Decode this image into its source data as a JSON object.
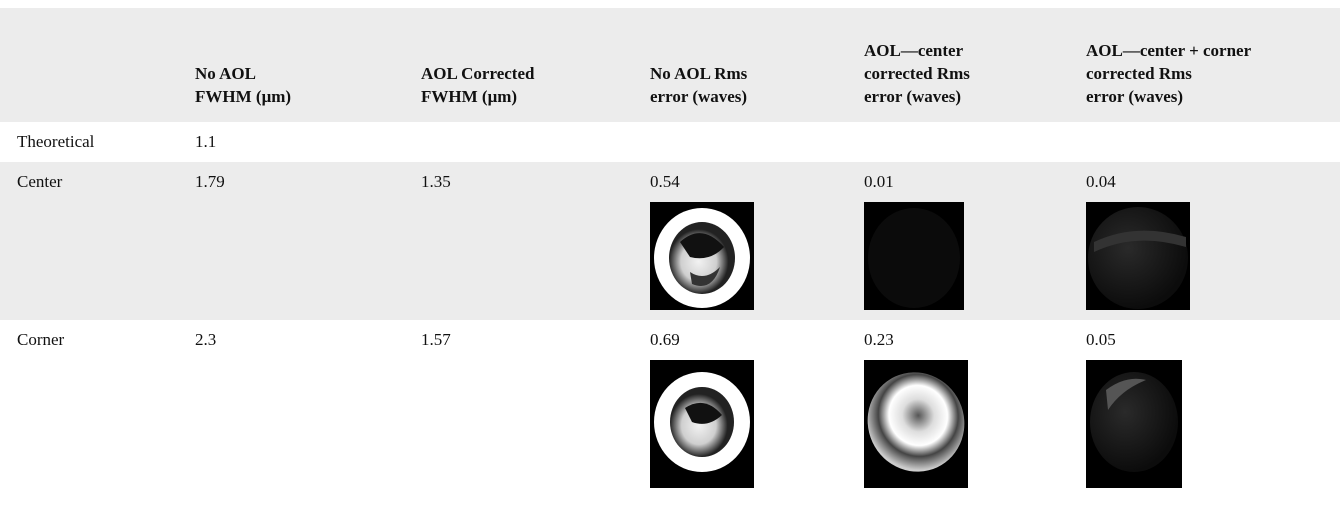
{
  "table": {
    "columns": [
      [
        "No AOL",
        "FWHM (μm)"
      ],
      [
        "AOL Corrected",
        "FWHM (μm)"
      ],
      [
        "No AOL Rms",
        "error (waves)"
      ],
      [
        "AOL—center",
        "corrected Rms",
        "error (waves)"
      ],
      [
        "AOL—center + corner",
        "corrected Rms",
        "error (waves)"
      ]
    ],
    "rows": [
      [
        "Theoretical",
        "1.1"
      ],
      [
        "Center",
        "1.79",
        "1.35",
        "0.54",
        "0.01",
        "0.04"
      ],
      [
        "Corner",
        "2.3",
        "1.57",
        "0.69",
        "0.23",
        "0.05"
      ]
    ]
  }
}
